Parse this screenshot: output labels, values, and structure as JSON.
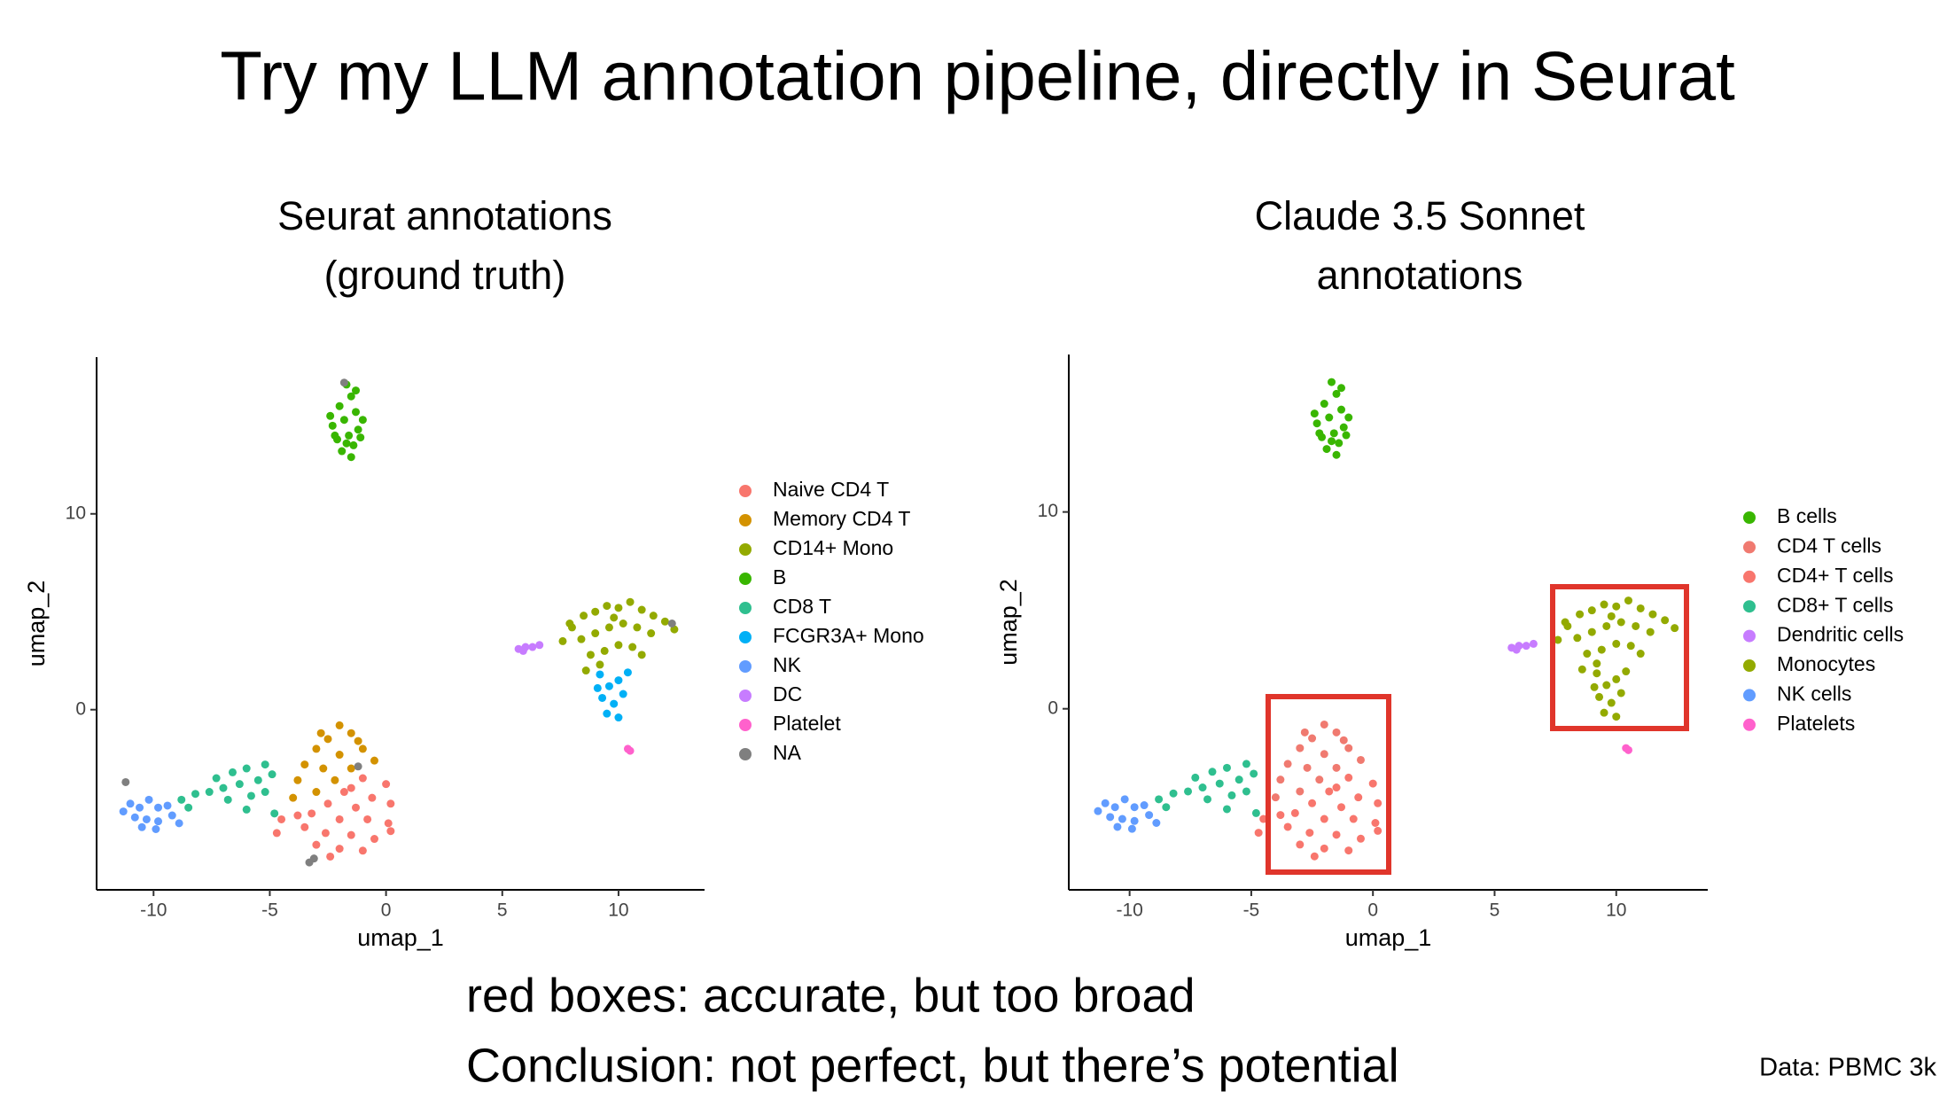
{
  "title": "Try my LLM annotation pipeline, directly in Seurat",
  "notes": [
    "red boxes: accurate, but too broad",
    "Conclusion: not perfect, but there’s potential"
  ],
  "source": "Data: PBMC 3k",
  "chart_data": [
    {
      "type": "scatter",
      "title": [
        "Seurat annotations",
        "(ground truth)"
      ],
      "xlabel": "umap_1",
      "ylabel": "umap_2",
      "xlim": [
        -12.45,
        13.7
      ],
      "ylim": [
        -9.2,
        18
      ],
      "xticks": [
        -10,
        -5,
        0,
        5,
        10
      ],
      "yticks": [
        0,
        10
      ],
      "series": [
        {
          "name": "Naive CD4 T",
          "color": "#f8766d",
          "x": [
            -1,
            0,
            -1.8,
            -0.6,
            0.2,
            -2.5,
            -1.3,
            -3.2,
            -2,
            -0.8,
            0.1,
            -3.5,
            -2.6,
            -1.5,
            -0.5,
            -3,
            -2,
            -1,
            -4.5,
            -4.7,
            -1.5,
            -2.4,
            0.2,
            -3.8
          ],
          "y": [
            -3.5,
            -3.8,
            -4.2,
            -4.5,
            -4.8,
            -4.8,
            -5,
            -5.3,
            -5.6,
            -5.6,
            -5.8,
            -6,
            -6.3,
            -6.4,
            -6.6,
            -6.9,
            -7.1,
            -7.2,
            -5.6,
            -6.3,
            -4,
            -7.5,
            -6.2,
            -5.4
          ]
        },
        {
          "name": "Memory CD4 T",
          "color": "#d39200",
          "x": [
            -2,
            -1.5,
            -2.5,
            -3,
            -1,
            -2,
            -3.5,
            -2.7,
            -1.5,
            -0.5,
            -3.8,
            -2.2,
            -3,
            -4,
            -1.2,
            -2.8
          ],
          "y": [
            -0.8,
            -1.2,
            -1.5,
            -2,
            -2,
            -2.3,
            -2.8,
            -3,
            -3,
            -2.6,
            -3.6,
            -3.6,
            -4.2,
            -4.5,
            -1.6,
            -1.2
          ]
        },
        {
          "name": "CD14+ Mono",
          "color": "#93aa00",
          "x": [
            7.6,
            8,
            8.5,
            9,
            9.5,
            10,
            10.5,
            11,
            11.5,
            12,
            12.4,
            8.4,
            9,
            9.6,
            10.2,
            10.8,
            11.4,
            8.8,
            9.4,
            10,
            10.6,
            8.6,
            9.2,
            11,
            7.9,
            9.8
          ],
          "y": [
            3.5,
            4.2,
            4.8,
            5,
            5.3,
            5.2,
            5.5,
            5.1,
            4.8,
            4.5,
            4.1,
            3.6,
            3.9,
            4.2,
            4.4,
            4.2,
            3.9,
            2.8,
            3,
            3.3,
            3.2,
            2,
            2.3,
            2.8,
            4.4,
            4.7
          ]
        },
        {
          "name": "B",
          "color": "#39b600",
          "x": [
            -1.7,
            -1.5,
            -2,
            -1.3,
            -1.8,
            -2.3,
            -1.2,
            -1.6,
            -2.1,
            -1.4,
            -1.9,
            -1.5,
            -2.4,
            -1,
            -1.1,
            -2.2,
            -1.7,
            -1.3
          ],
          "y": [
            16.6,
            16,
            15.5,
            15.2,
            14.8,
            14.5,
            14.3,
            14,
            13.8,
            13.5,
            13.2,
            12.9,
            15,
            14.8,
            13.9,
            14,
            13.6,
            16.3
          ]
        },
        {
          "name": "CD8 T",
          "color": "#2fbf8f",
          "x": [
            -5.2,
            -6,
            -6.6,
            -5.5,
            -6.3,
            -7,
            -7.6,
            -8.2,
            -8.8,
            -5.8,
            -6.8,
            -5.2,
            -7.3,
            -4.9,
            -4.8,
            -8.5,
            -6
          ],
          "y": [
            -2.8,
            -3,
            -3.2,
            -3.6,
            -3.8,
            -4,
            -4.2,
            -4.3,
            -4.6,
            -4.4,
            -4.6,
            -4.2,
            -3.5,
            -3.3,
            -5.3,
            -5,
            -5.1
          ]
        },
        {
          "name": "FCGR3A+ Mono",
          "color": "#00b0f6",
          "x": [
            9.2,
            9.6,
            10,
            9.3,
            9.8,
            10.2,
            9.5,
            10,
            9.1,
            10.4
          ],
          "y": [
            1.8,
            1.2,
            1.5,
            0.6,
            0.3,
            0.8,
            -0.2,
            -0.4,
            1.1,
            1.9
          ]
        },
        {
          "name": "NK",
          "color": "#619cff",
          "x": [
            -11,
            -10.6,
            -10.2,
            -9.8,
            -9.4,
            -10.8,
            -10.3,
            -9.8,
            -9.2,
            -10.5,
            -9.9,
            -8.9,
            -11.3
          ],
          "y": [
            -4.8,
            -5,
            -4.6,
            -5,
            -4.9,
            -5.5,
            -5.6,
            -5.7,
            -5.4,
            -6,
            -6.1,
            -5.8,
            -5.2
          ]
        },
        {
          "name": "DC",
          "color": "#c77cff",
          "x": [
            5.7,
            6,
            6.3,
            6.6,
            5.9
          ],
          "y": [
            3.1,
            3.2,
            3.2,
            3.3,
            3
          ]
        },
        {
          "name": "Platelet",
          "color": "#ff61cc",
          "x": [
            10.4,
            10.5
          ],
          "y": [
            -2,
            -2.1
          ]
        },
        {
          "name": "NA",
          "color": "#7f7f7f",
          "x": [
            -11.2,
            -3.1,
            -3.3,
            -1.8,
            12.3,
            -1.2
          ],
          "y": [
            -3.7,
            -7.6,
            -7.8,
            16.7,
            4.4,
            -2.9
          ]
        }
      ]
    },
    {
      "type": "scatter",
      "title": [
        "Claude 3.5 Sonnet",
        "annotations"
      ],
      "xlabel": "umap_1",
      "ylabel": "umap_2",
      "xlim": [
        -12.5,
        13.76
      ],
      "ylim": [
        -9.2,
        18
      ],
      "xticks": [
        -10,
        -5,
        0,
        5,
        10
      ],
      "yticks": [
        0,
        10
      ],
      "series": [
        {
          "name": "B cells",
          "color": "#39b600",
          "x": [
            -1.7,
            -1.5,
            -2,
            -1.3,
            -1.8,
            -2.3,
            -1.2,
            -1.6,
            -2.1,
            -1.4,
            -1.9,
            -1.5,
            -2.4,
            -1,
            -1.1,
            -2.2,
            -1.7,
            -1.3
          ],
          "y": [
            16.6,
            16,
            15.5,
            15.2,
            14.8,
            14.5,
            14.3,
            14,
            13.8,
            13.5,
            13.2,
            12.9,
            15,
            14.8,
            13.9,
            14,
            13.6,
            16.3
          ]
        },
        {
          "name": "CD4 T cells",
          "color": "#f07a70",
          "x": [
            -2,
            -1.5,
            -2.5,
            -3,
            -1,
            -2,
            -3.5,
            -2.7,
            -1.5,
            -0.5,
            -3.8,
            -2.2,
            -3,
            -4,
            -1.2,
            -2.8
          ],
          "y": [
            -0.8,
            -1.2,
            -1.5,
            -2,
            -2,
            -2.3,
            -2.8,
            -3,
            -3,
            -2.6,
            -3.6,
            -3.6,
            -4.2,
            -4.5,
            -1.6,
            -1.2
          ]
        },
        {
          "name": "CD4+ T cells",
          "color": "#f8766d",
          "x": [
            -1,
            0,
            -1.8,
            -0.6,
            0.2,
            -2.5,
            -1.3,
            -3.2,
            -2,
            -0.8,
            0.1,
            -3.5,
            -2.6,
            -1.5,
            -0.5,
            -3,
            -2,
            -1,
            -4.5,
            -4.7,
            -1.5,
            -2.4,
            0.2,
            -3.8
          ],
          "y": [
            -3.5,
            -3.8,
            -4.2,
            -4.5,
            -4.8,
            -4.8,
            -5,
            -5.3,
            -5.6,
            -5.6,
            -5.8,
            -6,
            -6.3,
            -6.4,
            -6.6,
            -6.9,
            -7.1,
            -7.2,
            -5.6,
            -6.3,
            -4,
            -7.5,
            -6.2,
            -5.4
          ]
        },
        {
          "name": "CD8+ T cells",
          "color": "#2fbf8f",
          "x": [
            -5.2,
            -6,
            -6.6,
            -5.5,
            -6.3,
            -7,
            -7.6,
            -8.2,
            -8.8,
            -5.8,
            -6.8,
            -5.2,
            -7.3,
            -4.9,
            -4.8,
            -8.5,
            -6
          ],
          "y": [
            -2.8,
            -3,
            -3.2,
            -3.6,
            -3.8,
            -4,
            -4.2,
            -4.3,
            -4.6,
            -4.4,
            -4.6,
            -4.2,
            -3.5,
            -3.3,
            -5.3,
            -5,
            -5.1
          ]
        },
        {
          "name": "Dendritic cells",
          "color": "#c77cff",
          "x": [
            5.7,
            6,
            6.3,
            6.6,
            5.9
          ],
          "y": [
            3.1,
            3.2,
            3.2,
            3.3,
            3
          ]
        },
        {
          "name": "Monocytes",
          "color": "#93aa00",
          "x": [
            7.6,
            8,
            8.5,
            9,
            9.5,
            10,
            10.5,
            11,
            11.5,
            12,
            12.4,
            8.4,
            9,
            9.6,
            10.2,
            10.8,
            11.4,
            8.8,
            9.4,
            10,
            10.6,
            8.6,
            9.2,
            11,
            7.9,
            9.8,
            9.2,
            9.6,
            10,
            9.3,
            9.8,
            10.2,
            9.5,
            10,
            9.1,
            10.4
          ],
          "y": [
            3.5,
            4.2,
            4.8,
            5,
            5.3,
            5.2,
            5.5,
            5.1,
            4.8,
            4.5,
            4.1,
            3.6,
            3.9,
            4.2,
            4.4,
            4.2,
            3.9,
            2.8,
            3,
            3.3,
            3.2,
            2,
            2.3,
            2.8,
            4.4,
            4.7,
            1.8,
            1.2,
            1.5,
            0.6,
            0.3,
            0.8,
            -0.2,
            -0.4,
            1.1,
            1.9
          ]
        },
        {
          "name": "NK cells",
          "color": "#619cff",
          "x": [
            -11,
            -10.6,
            -10.2,
            -9.8,
            -9.4,
            -10.8,
            -10.3,
            -9.8,
            -9.2,
            -10.5,
            -9.9,
            -8.9,
            -11.3
          ],
          "y": [
            -4.8,
            -5,
            -4.6,
            -5,
            -4.9,
            -5.5,
            -5.6,
            -5.7,
            -5.4,
            -6,
            -6.1,
            -5.8,
            -5.2
          ]
        },
        {
          "name": "Platelets",
          "color": "#ff61cc",
          "x": [
            10.4,
            10.5
          ],
          "y": [
            -2,
            -2.1
          ]
        }
      ]
    }
  ]
}
